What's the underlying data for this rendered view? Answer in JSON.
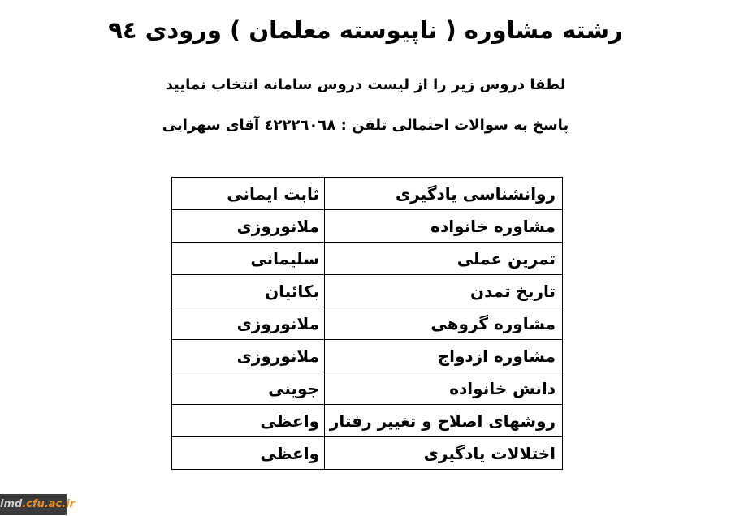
{
  "header": {
    "title": "رشته مشاوره ( ناپیوسته معلمان ) ورودی ٩٤",
    "instruction": "لطفا دروس زیر را از لیست دروس سامانه انتخاب نمایید",
    "contact": "پاسخ به سوالات احتمالی تلفن : ٤٢٢٢٦٠٦٨ آقای سهرابی",
    "phone_number": "٤٢٢٢٦٠٦٨",
    "entry_year": "٩٤"
  },
  "table": {
    "columns": [
      "course",
      "instructor"
    ],
    "rows": [
      {
        "course": "روانشناسی یادگیری",
        "instructor": "ثابت ایمانی"
      },
      {
        "course": "مشاوره خانواده",
        "instructor": "ملانوروزی"
      },
      {
        "course": "تمرین عملی",
        "instructor": "سلیمانی"
      },
      {
        "course": "تاریخ تمدن",
        "instructor": "بکائیان"
      },
      {
        "course": "مشاوره گروهی",
        "instructor": "ملانوروزی"
      },
      {
        "course": "مشاوره ازدواج",
        "instructor": "ملانوروزی"
      },
      {
        "course": "دانش خانواده",
        "instructor": "جوینی"
      },
      {
        "course": "روشهای اصلاح و تغییر رفتار",
        "instructor": "واعظی"
      },
      {
        "course": "اختلالات یادگیری",
        "instructor": "واعظی"
      }
    ]
  },
  "watermark": {
    "prefix": "lmd",
    "suffix": ".cfu.ac.ir",
    "background_color": "#3b3b3b",
    "prefix_color": "#c9c9c9",
    "suffix_color": "#ef8c1a"
  }
}
